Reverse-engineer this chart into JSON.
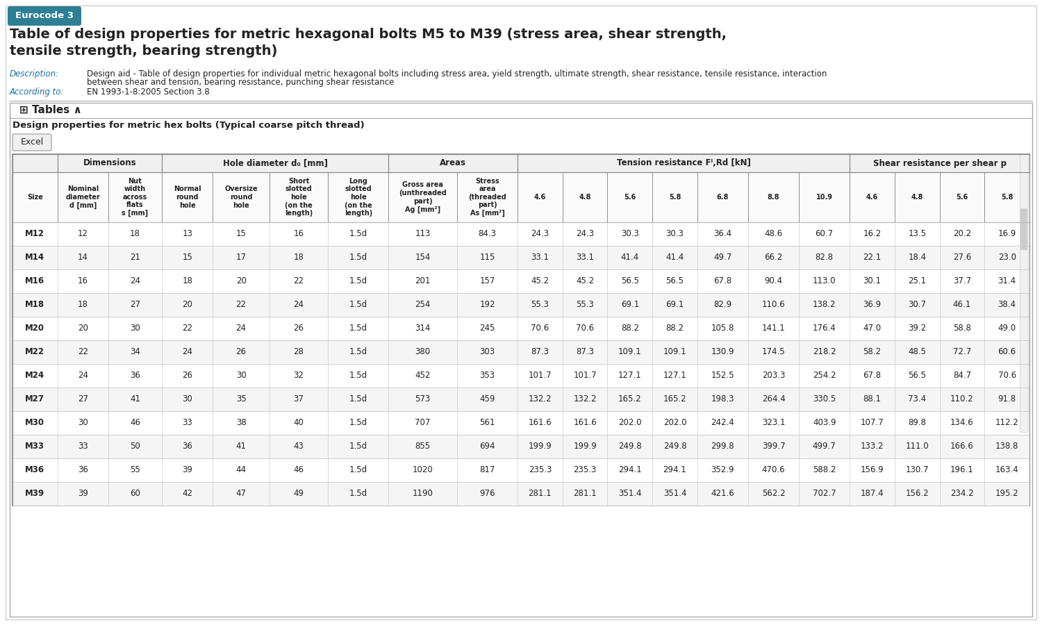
{
  "eurocode_label": "Eurocode 3",
  "eurocode_bg": "#2e7f93",
  "title_line1": "Table of design properties for metric hexagonal bolts M5 to M39 (stress area, shear strength,",
  "title_line2": "tensile strength, bearing strength)",
  "description_label": "Description:",
  "description_text": "Design aid - Table of design properties for individual metric hexagonal bolts including stress area, yield strength, ultimate strength, shear resistance, tensile resistance, interaction\nbetween shear and tension, bearing resistance, punching shear resistance",
  "according_label": "According to:",
  "according_text": "EN 1993-1-8:2005 Section 3.8",
  "tables_label": "⊞ Tables ∧",
  "sub_title": "Design properties for metric hex bolts (Typical coarse pitch thread)",
  "col_groups": [
    {
      "label": "",
      "span": 1
    },
    {
      "label": "Dimensions",
      "span": 2
    },
    {
      "label": "Hole diameter d₀ [mm]",
      "span": 4
    },
    {
      "label": "Areas",
      "span": 2
    },
    {
      "label": "Tension resistance Fᴵ,Rd [kN]",
      "span": 7
    },
    {
      "label": "Shear resistance per shear p",
      "span": 4
    }
  ],
  "col_headers": [
    "Size",
    "Nominal\ndiameter\nd [mm]",
    "Nut\nwidth\nacross\nflats\ns [mm]",
    "Normal\nround\nhole",
    "Oversize\nround\nhole",
    "Short\nslotted\nhole\n(on the\nlength)",
    "Long\nslotted\nhole\n(on the\nlength)",
    "Gross area\n(unthreaded\npart)\nAg [mm²]",
    "Stress\narea\n(threaded\npart)\nAs [mm²]",
    "4.6",
    "4.8",
    "5.6",
    "5.8",
    "6.8",
    "8.8",
    "10.9",
    "4.6",
    "4.8",
    "5.6",
    "5.8"
  ],
  "rows": [
    [
      "M12",
      "12",
      "18",
      "13",
      "15",
      "16",
      "1.5d",
      "113",
      "84.3",
      "24.3",
      "24.3",
      "30.3",
      "30.3",
      "36.4",
      "48.6",
      "60.7",
      "16.2",
      "13.5",
      "20.2",
      "16.9"
    ],
    [
      "M14",
      "14",
      "21",
      "15",
      "17",
      "18",
      "1.5d",
      "154",
      "115",
      "33.1",
      "33.1",
      "41.4",
      "41.4",
      "49.7",
      "66.2",
      "82.8",
      "22.1",
      "18.4",
      "27.6",
      "23.0"
    ],
    [
      "M16",
      "16",
      "24",
      "18",
      "20",
      "22",
      "1.5d",
      "201",
      "157",
      "45.2",
      "45.2",
      "56.5",
      "56.5",
      "67.8",
      "90.4",
      "113.0",
      "30.1",
      "25.1",
      "37.7",
      "31.4"
    ],
    [
      "M18",
      "18",
      "27",
      "20",
      "22",
      "24",
      "1.5d",
      "254",
      "192",
      "55.3",
      "55.3",
      "69.1",
      "69.1",
      "82.9",
      "110.6",
      "138.2",
      "36.9",
      "30.7",
      "46.1",
      "38.4"
    ],
    [
      "M20",
      "20",
      "30",
      "22",
      "24",
      "26",
      "1.5d",
      "314",
      "245",
      "70.6",
      "70.6",
      "88.2",
      "88.2",
      "105.8",
      "141.1",
      "176.4",
      "47.0",
      "39.2",
      "58.8",
      "49.0"
    ],
    [
      "M22",
      "22",
      "34",
      "24",
      "26",
      "28",
      "1.5d",
      "380",
      "303",
      "87.3",
      "87.3",
      "109.1",
      "109.1",
      "130.9",
      "174.5",
      "218.2",
      "58.2",
      "48.5",
      "72.7",
      "60.6"
    ],
    [
      "M24",
      "24",
      "36",
      "26",
      "30",
      "32",
      "1.5d",
      "452",
      "353",
      "101.7",
      "101.7",
      "127.1",
      "127.1",
      "152.5",
      "203.3",
      "254.2",
      "67.8",
      "56.5",
      "84.7",
      "70.6"
    ],
    [
      "M27",
      "27",
      "41",
      "30",
      "35",
      "37",
      "1.5d",
      "573",
      "459",
      "132.2",
      "132.2",
      "165.2",
      "165.2",
      "198.3",
      "264.4",
      "330.5",
      "88.1",
      "73.4",
      "110.2",
      "91.8"
    ],
    [
      "M30",
      "30",
      "46",
      "33",
      "38",
      "40",
      "1.5d",
      "707",
      "561",
      "161.6",
      "161.6",
      "202.0",
      "202.0",
      "242.4",
      "323.1",
      "403.9",
      "107.7",
      "89.8",
      "134.6",
      "112.2"
    ],
    [
      "M33",
      "33",
      "50",
      "36",
      "41",
      "43",
      "1.5d",
      "855",
      "694",
      "199.9",
      "199.9",
      "249.8",
      "249.8",
      "299.8",
      "399.7",
      "499.7",
      "133.2",
      "111.0",
      "166.6",
      "138.8"
    ],
    [
      "M36",
      "36",
      "55",
      "39",
      "44",
      "46",
      "1.5d",
      "1020",
      "817",
      "235.3",
      "235.3",
      "294.1",
      "294.1",
      "352.9",
      "470.6",
      "588.2",
      "156.9",
      "130.7",
      "196.1",
      "163.4"
    ],
    [
      "M39",
      "39",
      "60",
      "42",
      "47",
      "49",
      "1.5d",
      "1190",
      "976",
      "281.1",
      "281.1",
      "351.4",
      "351.4",
      "421.6",
      "562.2",
      "702.7",
      "187.4",
      "156.2",
      "234.2",
      "195.2"
    ]
  ],
  "bg_white": "#ffffff",
  "bg_light_gray": "#f5f5f5",
  "border_color": "#cccccc",
  "border_dark": "#888888",
  "text_dark": "#222222",
  "link_color": "#1a6d9e"
}
